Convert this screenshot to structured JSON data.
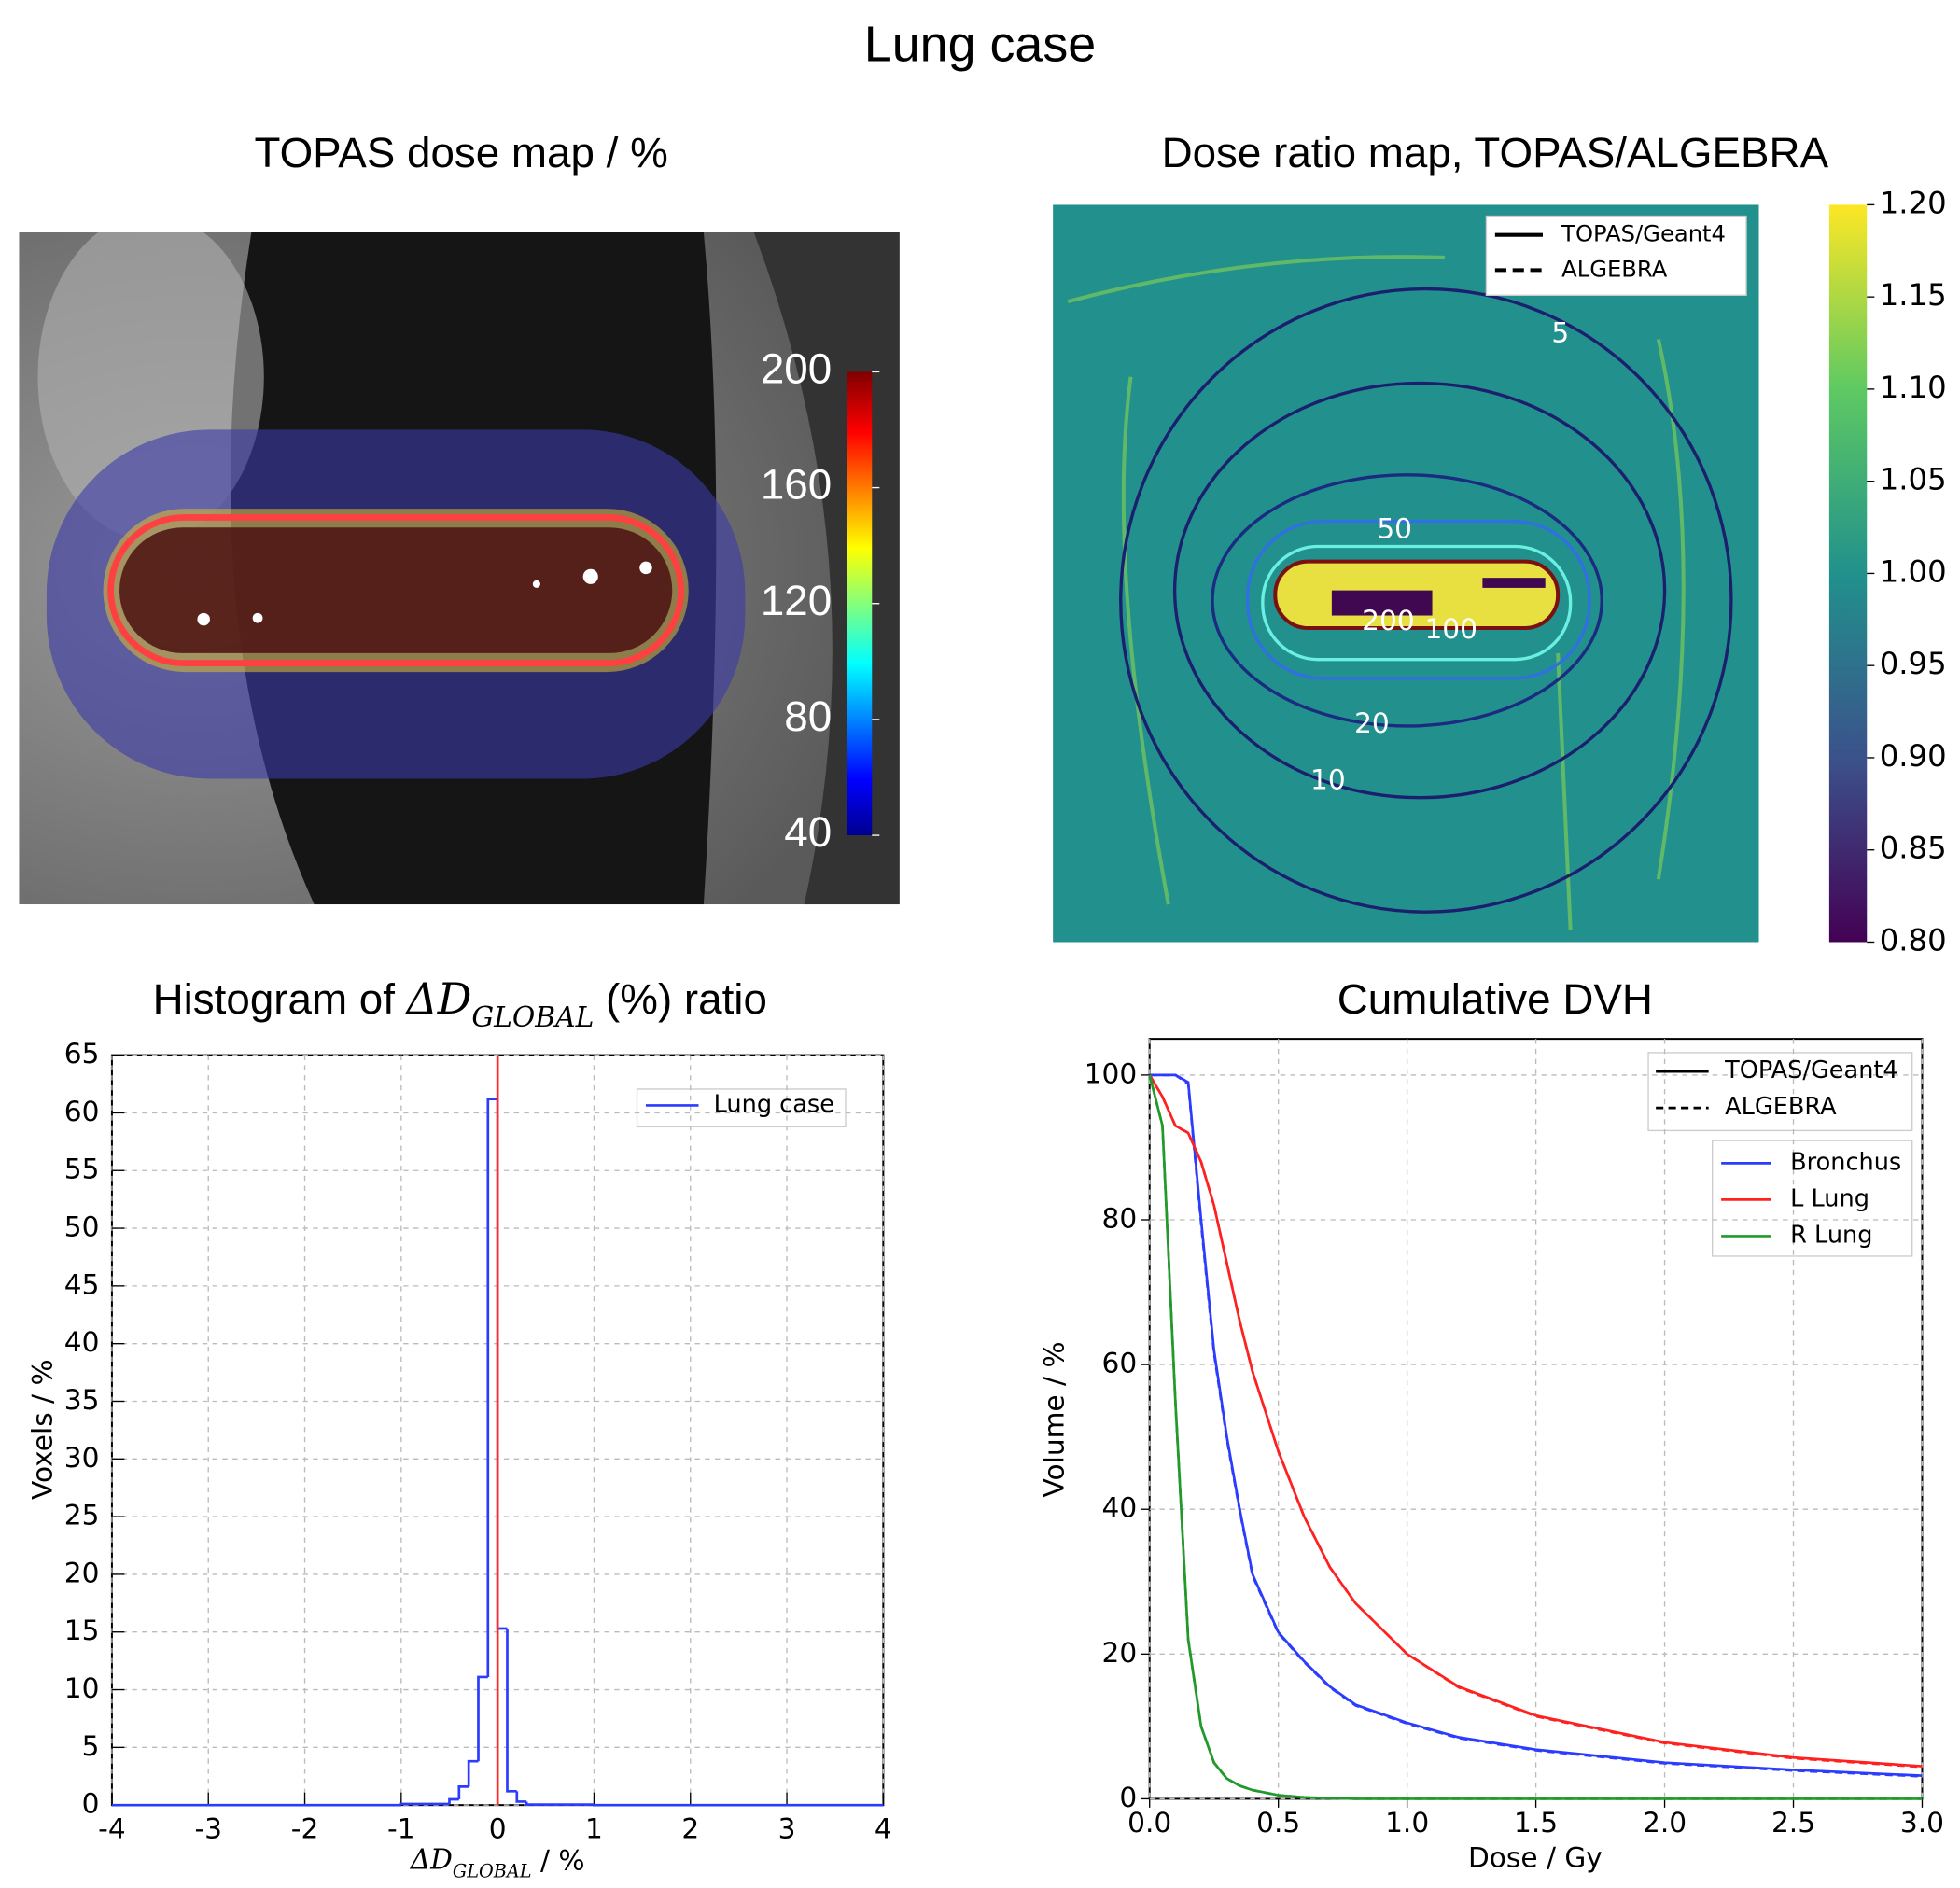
{
  "title": "Lung case",
  "chart_data": [
    {
      "type": "image",
      "title": "TOPAS dose map / %",
      "colorbar": {
        "lim": [
          40,
          200
        ],
        "ticks": [
          40,
          80,
          120,
          160,
          200
        ]
      }
    },
    {
      "type": "image",
      "title": "Dose ratio map, TOPAS/ALGEBRA",
      "colorbar": {
        "lim": [
          0.8,
          1.2
        ],
        "ticks": [
          {
            "value": 0.8,
            "label": "0.80"
          },
          0.85,
          {
            "value": 0.9,
            "label": "0.90"
          },
          0.95,
          {
            "value": 1,
            "label": "1.00"
          },
          1.05,
          {
            "value": 1.1,
            "label": "1.10"
          },
          1.15,
          {
            "value": 1.2,
            "label": "1.20"
          }
        ]
      },
      "contour_levels": [
        5,
        10,
        20,
        50,
        100,
        200
      ],
      "linestyles": [
        {
          "name": "TOPAS/Geant4",
          "dash": "solid"
        },
        {
          "name": "ALGEBRA",
          "dash": "dashed"
        }
      ]
    },
    {
      "type": "histogram",
      "title": {
        "prefix": "Histogram of",
        "symbol": "ΔD",
        "subscript": "GLOBAL",
        "suffix": "(%) ratio"
      },
      "xlabel": {
        "symbol": "ΔD",
        "subscript": "GLOBAL",
        "suffix": "/ %"
      },
      "ylabel": "Voxels / %",
      "bins": [
        -4,
        -1,
        -0.5,
        -0.4,
        -0.3,
        -0.2,
        -0.1,
        0,
        0.1,
        0.2,
        0.3,
        1,
        4
      ],
      "series": [
        {
          "name": "Lung case",
          "color": "#2b3cff",
          "values": [
            0,
            0.1,
            0.5,
            1.6,
            3.8,
            11.1,
            61.2,
            15.3,
            1.2,
            0.3,
            0.05,
            0
          ]
        }
      ],
      "vline": {
        "x": 0,
        "color": "#ff2a2a"
      },
      "xlim": [
        -4,
        4
      ],
      "xticks": [
        -4,
        -3,
        -2,
        -1,
        0,
        1,
        2,
        3,
        4
      ],
      "ylim": [
        0,
        65
      ],
      "yticks": [
        0,
        5,
        10,
        15,
        20,
        25,
        30,
        35,
        40,
        45,
        50,
        55,
        60,
        65
      ],
      "grid": true,
      "legend": "upper right"
    },
    {
      "type": "line",
      "title": "Cumulative DVH",
      "xlabel": "Dose / Gy",
      "ylabel": "Volume / %",
      "x": [
        0,
        0.05,
        0.1,
        0.15,
        0.2,
        0.25,
        0.3,
        0.35,
        0.4,
        0.5,
        0.6,
        0.7,
        0.8,
        1.0,
        1.2,
        1.5,
        2.0,
        2.5,
        3.0
      ],
      "linestyles": [
        {
          "name": "TOPAS/Geant4",
          "dash": "solid"
        },
        {
          "name": "ALGEBRA",
          "dash": "dashed"
        }
      ],
      "series": [
        {
          "name": "Bronchus",
          "color": "#2b3cff",
          "values": [
            100,
            100,
            100,
            99,
            80,
            62,
            50,
            40,
            31,
            23,
            19,
            15.5,
            13,
            10.5,
            8.5,
            6.8,
            5,
            4,
            3.2
          ],
          "algebra_values": [
            100,
            100,
            100,
            98.8,
            79.5,
            61.6,
            49.7,
            39.8,
            30.8,
            22.9,
            18.9,
            15.4,
            12.9,
            10.4,
            8.4,
            6.7,
            4.9,
            3.9,
            3.1
          ]
        },
        {
          "name": "L Lung",
          "color": "#ff2020",
          "values": [
            100,
            97,
            93,
            92,
            88,
            82,
            74,
            66,
            59,
            48,
            39,
            32,
            27,
            20,
            15.5,
            11.5,
            7.8,
            5.7,
            4.5
          ],
          "algebra_values": [
            100,
            97,
            93,
            92,
            88,
            82,
            74,
            66,
            59,
            48,
            39,
            32,
            27,
            20,
            15.4,
            11.4,
            7.7,
            5.6,
            4.4
          ]
        },
        {
          "name": "R Lung",
          "color": "#22992b",
          "values": [
            100,
            93,
            55,
            22,
            10,
            5,
            2.8,
            1.8,
            1.2,
            0.5,
            0.2,
            0.1,
            0,
            0,
            0,
            0,
            0,
            0,
            0
          ],
          "algebra_values": [
            100,
            93,
            55,
            22,
            10,
            5,
            2.8,
            1.8,
            1.2,
            0.5,
            0.2,
            0.1,
            0,
            0,
            0,
            0,
            0,
            0,
            0
          ]
        }
      ],
      "xlim": [
        0,
        3
      ],
      "xticks": [
        {
          "value": 0,
          "label": "0.0"
        },
        0.5,
        {
          "value": 1,
          "label": "1.0"
        },
        1.5,
        {
          "value": 2,
          "label": "2.0"
        },
        2.5,
        {
          "value": 3,
          "label": "3.0"
        }
      ],
      "ylim": [
        0,
        105
      ],
      "yticks": [
        0,
        20,
        40,
        60,
        80,
        100
      ],
      "grid": true,
      "legend": "upper right"
    }
  ]
}
